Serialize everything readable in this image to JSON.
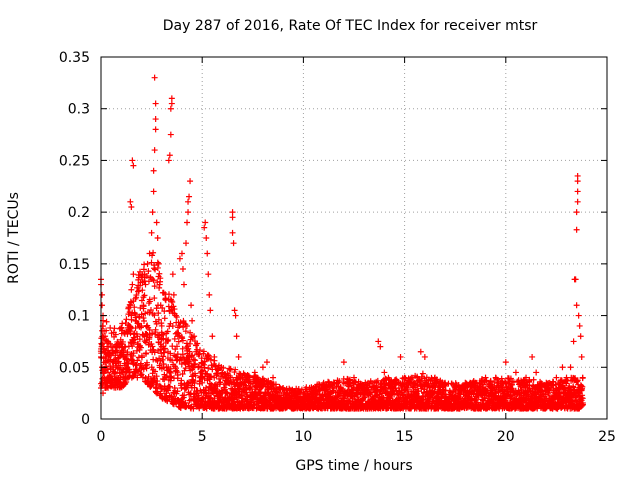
{
  "chart_data": {
    "type": "scatter",
    "title": "Day 287 of 2016, Rate Of TEC Index for receiver mtsr",
    "xlabel": "GPS time / hours",
    "ylabel": "ROTI / TECUs",
    "xlim": [
      0,
      25
    ],
    "ylim": [
      0,
      0.35
    ],
    "xticks": [
      0,
      5,
      10,
      15,
      20,
      25
    ],
    "yticks": [
      0,
      0.05,
      0.1,
      0.15,
      0.2,
      0.25,
      0.3,
      0.35
    ],
    "xtick_labels": [
      "0",
      "5",
      "10",
      "15",
      "20",
      "25"
    ],
    "ytick_labels": [
      "0",
      "0.05",
      "0.1",
      "0.15",
      "0.2",
      "0.25",
      "0.3",
      "0.35"
    ],
    "grid": true,
    "marker": "+",
    "color": "#ff0000",
    "series": [
      {
        "name": "ROTI",
        "points": [
          [
            0.0,
            0.135
          ],
          [
            0.0,
            0.13
          ],
          [
            0.05,
            0.12
          ],
          [
            0.05,
            0.11
          ],
          [
            0.1,
            0.1
          ],
          [
            0.1,
            0.09
          ],
          [
            0.15,
            0.085
          ],
          [
            0.2,
            0.08
          ],
          [
            0.0,
            0.06
          ],
          [
            0.05,
            0.05
          ],
          [
            0.1,
            0.045
          ],
          [
            0.15,
            0.04
          ],
          [
            0.2,
            0.035
          ],
          [
            0.0,
            0.03
          ],
          [
            0.1,
            0.025
          ],
          [
            0.2,
            0.03
          ],
          [
            0.3,
            0.07
          ],
          [
            0.35,
            0.075
          ],
          [
            0.4,
            0.06
          ],
          [
            0.45,
            0.04
          ],
          [
            0.5,
            0.035
          ],
          [
            0.6,
            0.05
          ],
          [
            0.7,
            0.045
          ],
          [
            0.8,
            0.04
          ],
          [
            0.9,
            0.035
          ],
          [
            1.0,
            0.045
          ],
          [
            1.1,
            0.06
          ],
          [
            1.2,
            0.07
          ],
          [
            1.3,
            0.055
          ],
          [
            1.35,
            0.085
          ],
          [
            1.4,
            0.09
          ],
          [
            1.45,
            0.11
          ],
          [
            1.5,
            0.1
          ],
          [
            1.5,
            0.125
          ],
          [
            1.55,
            0.13
          ],
          [
            1.6,
            0.14
          ],
          [
            1.45,
            0.21
          ],
          [
            1.5,
            0.205
          ],
          [
            1.55,
            0.25
          ],
          [
            1.6,
            0.245
          ],
          [
            1.7,
            0.095
          ],
          [
            1.8,
            0.08
          ],
          [
            1.9,
            0.07
          ],
          [
            2.0,
            0.09
          ],
          [
            2.1,
            0.11
          ],
          [
            2.2,
            0.13
          ],
          [
            2.3,
            0.15
          ],
          [
            2.4,
            0.16
          ],
          [
            2.5,
            0.18
          ],
          [
            2.55,
            0.2
          ],
          [
            2.6,
            0.22
          ],
          [
            2.6,
            0.24
          ],
          [
            2.65,
            0.26
          ],
          [
            2.7,
            0.28
          ],
          [
            2.7,
            0.29
          ],
          [
            2.7,
            0.305
          ],
          [
            2.65,
            0.33
          ],
          [
            2.75,
            0.19
          ],
          [
            2.8,
            0.175
          ],
          [
            2.85,
            0.15
          ],
          [
            2.9,
            0.13
          ],
          [
            2.95,
            0.11
          ],
          [
            3.0,
            0.09
          ],
          [
            3.0,
            0.07
          ],
          [
            3.1,
            0.05
          ],
          [
            3.2,
            0.04
          ],
          [
            3.3,
            0.03
          ],
          [
            3.35,
            0.25
          ],
          [
            3.4,
            0.255
          ],
          [
            3.45,
            0.275
          ],
          [
            3.45,
            0.3
          ],
          [
            3.5,
            0.305
          ],
          [
            3.5,
            0.31
          ],
          [
            3.55,
            0.14
          ],
          [
            3.6,
            0.12
          ],
          [
            3.7,
            0.1
          ],
          [
            3.8,
            0.08
          ],
          [
            3.9,
            0.155
          ],
          [
            4.0,
            0.16
          ],
          [
            4.05,
            0.145
          ],
          [
            4.1,
            0.13
          ],
          [
            4.2,
            0.17
          ],
          [
            4.25,
            0.19
          ],
          [
            4.3,
            0.2
          ],
          [
            4.3,
            0.21
          ],
          [
            4.35,
            0.215
          ],
          [
            4.4,
            0.23
          ],
          [
            4.45,
            0.11
          ],
          [
            4.5,
            0.095
          ],
          [
            4.6,
            0.08
          ],
          [
            4.7,
            0.065
          ],
          [
            4.8,
            0.05
          ],
          [
            4.9,
            0.04
          ],
          [
            5.0,
            0.035
          ],
          [
            5.1,
            0.185
          ],
          [
            5.15,
            0.19
          ],
          [
            5.2,
            0.175
          ],
          [
            5.25,
            0.16
          ],
          [
            5.3,
            0.14
          ],
          [
            5.35,
            0.12
          ],
          [
            5.4,
            0.105
          ],
          [
            5.5,
            0.08
          ],
          [
            5.6,
            0.06
          ],
          [
            5.8,
            0.05
          ],
          [
            6.0,
            0.045
          ],
          [
            6.2,
            0.04
          ],
          [
            6.4,
            0.04
          ],
          [
            6.5,
            0.2
          ],
          [
            6.5,
            0.195
          ],
          [
            6.5,
            0.18
          ],
          [
            6.55,
            0.17
          ],
          [
            6.6,
            0.105
          ],
          [
            6.65,
            0.1
          ],
          [
            6.7,
            0.08
          ],
          [
            6.8,
            0.06
          ],
          [
            7.0,
            0.04
          ],
          [
            7.3,
            0.035
          ],
          [
            7.6,
            0.045
          ],
          [
            8.0,
            0.05
          ],
          [
            8.2,
            0.055
          ],
          [
            8.5,
            0.04
          ],
          [
            9.0,
            0.03
          ],
          [
            9.5,
            0.025
          ],
          [
            10.0,
            0.025
          ],
          [
            10.5,
            0.03
          ],
          [
            11.0,
            0.035
          ],
          [
            11.5,
            0.03
          ],
          [
            12.0,
            0.055
          ],
          [
            12.5,
            0.04
          ],
          [
            13.0,
            0.03
          ],
          [
            13.5,
            0.035
          ],
          [
            13.7,
            0.075
          ],
          [
            13.8,
            0.07
          ],
          [
            14.0,
            0.045
          ],
          [
            14.5,
            0.035
          ],
          [
            14.8,
            0.06
          ],
          [
            15.0,
            0.04
          ],
          [
            15.5,
            0.035
          ],
          [
            15.8,
            0.065
          ],
          [
            16.0,
            0.06
          ],
          [
            16.5,
            0.04
          ],
          [
            17.0,
            0.035
          ],
          [
            17.5,
            0.03
          ],
          [
            18.0,
            0.035
          ],
          [
            18.5,
            0.035
          ],
          [
            19.0,
            0.04
          ],
          [
            19.5,
            0.04
          ],
          [
            20.0,
            0.055
          ],
          [
            20.5,
            0.045
          ],
          [
            21.0,
            0.04
          ],
          [
            21.3,
            0.06
          ],
          [
            21.5,
            0.045
          ],
          [
            22.0,
            0.035
          ],
          [
            22.5,
            0.04
          ],
          [
            22.8,
            0.05
          ],
          [
            23.0,
            0.04
          ],
          [
            23.2,
            0.05
          ],
          [
            23.35,
            0.075
          ],
          [
            23.4,
            0.135
          ],
          [
            23.45,
            0.135
          ],
          [
            23.5,
            0.11
          ],
          [
            23.5,
            0.183
          ],
          [
            23.5,
            0.2
          ],
          [
            23.55,
            0.21
          ],
          [
            23.55,
            0.22
          ],
          [
            23.55,
            0.23
          ],
          [
            23.55,
            0.235
          ],
          [
            23.6,
            0.1
          ],
          [
            23.65,
            0.09
          ],
          [
            23.7,
            0.08
          ],
          [
            23.75,
            0.06
          ],
          [
            23.8,
            0.04
          ],
          [
            23.8,
            0.02
          ]
        ],
        "baseline_band": [
          [
            0.0,
            0.03,
            0.1
          ],
          [
            0.5,
            0.03,
            0.09
          ],
          [
            1.0,
            0.03,
            0.09
          ],
          [
            1.5,
            0.04,
            0.12
          ],
          [
            2.0,
            0.04,
            0.15
          ],
          [
            2.5,
            0.03,
            0.17
          ],
          [
            3.0,
            0.02,
            0.14
          ],
          [
            3.5,
            0.015,
            0.12
          ],
          [
            4.0,
            0.01,
            0.1
          ],
          [
            4.5,
            0.01,
            0.08
          ],
          [
            5.0,
            0.01,
            0.07
          ],
          [
            5.5,
            0.01,
            0.06
          ],
          [
            6.0,
            0.01,
            0.05
          ],
          [
            6.5,
            0.01,
            0.05
          ],
          [
            7.0,
            0.01,
            0.045
          ],
          [
            8.0,
            0.01,
            0.04
          ],
          [
            9.0,
            0.01,
            0.03
          ],
          [
            10.0,
            0.01,
            0.03
          ],
          [
            11.0,
            0.01,
            0.035
          ],
          [
            12.0,
            0.01,
            0.04
          ],
          [
            13.0,
            0.01,
            0.035
          ],
          [
            14.0,
            0.01,
            0.04
          ],
          [
            15.0,
            0.01,
            0.04
          ],
          [
            16.0,
            0.01,
            0.045
          ],
          [
            17.0,
            0.01,
            0.035
          ],
          [
            18.0,
            0.01,
            0.035
          ],
          [
            19.0,
            0.01,
            0.04
          ],
          [
            20.0,
            0.01,
            0.04
          ],
          [
            21.0,
            0.01,
            0.04
          ],
          [
            22.0,
            0.01,
            0.035
          ],
          [
            23.0,
            0.01,
            0.04
          ],
          [
            23.8,
            0.01,
            0.04
          ]
        ]
      }
    ]
  }
}
